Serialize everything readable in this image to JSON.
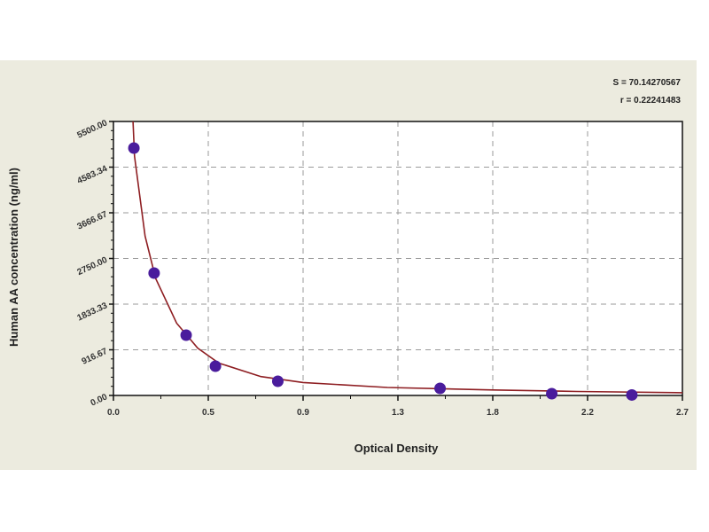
{
  "chart_data": {
    "type": "scatter",
    "xlabel": "Optical Density",
    "ylabel": "Human AA concentration (ng/ml)",
    "xlim": [
      0,
      2.7
    ],
    "ylim": [
      0,
      5500
    ],
    "x_tick_values": [
      0,
      0.45,
      0.9,
      1.35,
      1.8,
      2.25,
      2.7
    ],
    "x_tick_labels": [
      "0.0",
      "0.5",
      "0.9",
      "1.3",
      "1.8",
      "2.2",
      "2.7"
    ],
    "y_tick_values": [
      0,
      916.67,
      1833.33,
      2750,
      3666.67,
      4583.34,
      5500
    ],
    "y_tick_labels": [
      "0.00",
      "916.67",
      "1833.33",
      "2750.00",
      "3666.67",
      "4583.34",
      "5500.00"
    ],
    "grid": true,
    "stats": [
      "S = 70.14270567",
      "r = 0.22241483"
    ],
    "points": {
      "x": [
        0.097,
        0.193,
        0.345,
        0.484,
        0.78,
        1.55,
        2.08,
        2.46
      ],
      "y": [
        4966,
        2456,
        1210,
        587,
        285,
        142,
        36,
        10
      ]
    },
    "fit": {
      "x": [
        0.093,
        0.1,
        0.15,
        0.2,
        0.3,
        0.4,
        0.5,
        0.7,
        0.9,
        1.3,
        1.8,
        2.2,
        2.7
      ],
      "y": [
        5500,
        4800,
        3200,
        2350,
        1450,
        950,
        650,
        380,
        260,
        160,
        110,
        80,
        55
      ]
    },
    "colors": {
      "points": "#4a1c9c",
      "fit": "#8e1e22",
      "grid": "#9a9a9a",
      "background": "#ecebdf",
      "plot": "#ffffff"
    }
  }
}
